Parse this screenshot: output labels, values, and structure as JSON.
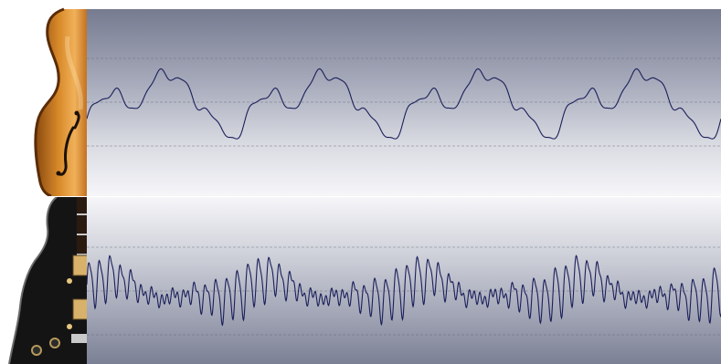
{
  "figure": {
    "background": "#ffffff",
    "waveform_color": "#1b1f5a",
    "gridline_color": "#606478"
  },
  "panels": [
    {
      "instrument": "violin",
      "icon": "violin-body-icon",
      "waveform": {
        "type": "periodic",
        "periods_visible": 4,
        "gridlines": 3
      }
    },
    {
      "instrument": "electric guitar",
      "icon": "electric-guitar-body-icon",
      "waveform": {
        "type": "periodic-high-frequency",
        "periods_visible": 4,
        "gridlines": 3
      }
    }
  ]
}
